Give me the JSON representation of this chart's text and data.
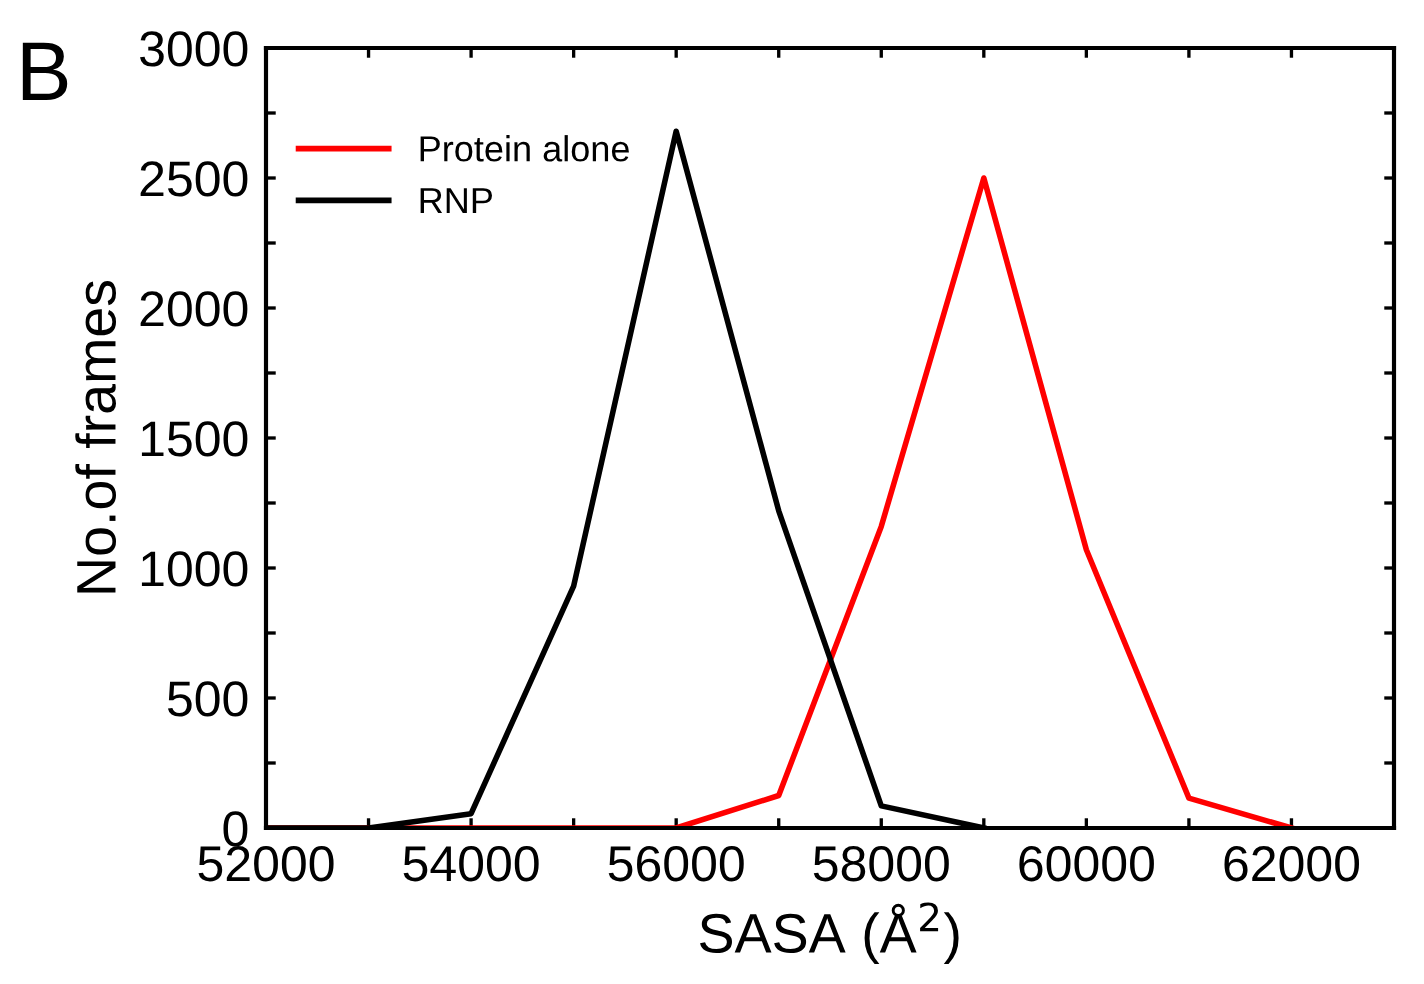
{
  "chart_data": {
    "type": "line",
    "xlabel": "SASA (Å$^{2}$)",
    "ylabel": "No.of frames",
    "annotations": [
      "B"
    ],
    "xlim": [
      52000,
      63000
    ],
    "ylim": [
      0,
      3000
    ],
    "xticks": [
      52000,
      {
        "value": 53000,
        "label": null
      },
      54000,
      {
        "value": 55000,
        "label": null
      },
      56000,
      {
        "value": 57000,
        "label": null
      },
      58000,
      {
        "value": 59000,
        "label": null
      },
      60000,
      {
        "value": 61000,
        "label": null
      },
      62000
    ],
    "yticks": [
      0,
      {
        "value": 250,
        "label": null
      },
      500,
      {
        "value": 750,
        "label": null
      },
      1000,
      {
        "value": 1250,
        "label": null
      },
      1500,
      {
        "value": 1750,
        "label": null
      },
      2000,
      {
        "value": 2250,
        "label": null
      },
      2500,
      {
        "value": 2750,
        "label": null
      },
      3000
    ],
    "grid": false,
    "legend": "top left",
    "marker": "none",
    "line_style": "solid",
    "series": [
      {
        "name": "Protein alone",
        "color": "#ff0000",
        "x": [
          52000,
          53000,
          54000,
          55000,
          56000,
          57000,
          58000,
          59000,
          60000,
          61000,
          62000
        ],
        "values": [
          0,
          0,
          0,
          0,
          0,
          125,
          1160,
          2500,
          1070,
          115,
          0
        ]
      },
      {
        "name": "RNP",
        "color": "#000000",
        "x": [
          52000,
          53000,
          54000,
          55000,
          56000,
          57000,
          58000,
          59000
        ],
        "values": [
          0,
          0,
          55,
          930,
          2680,
          1220,
          85,
          0
        ]
      }
    ]
  }
}
